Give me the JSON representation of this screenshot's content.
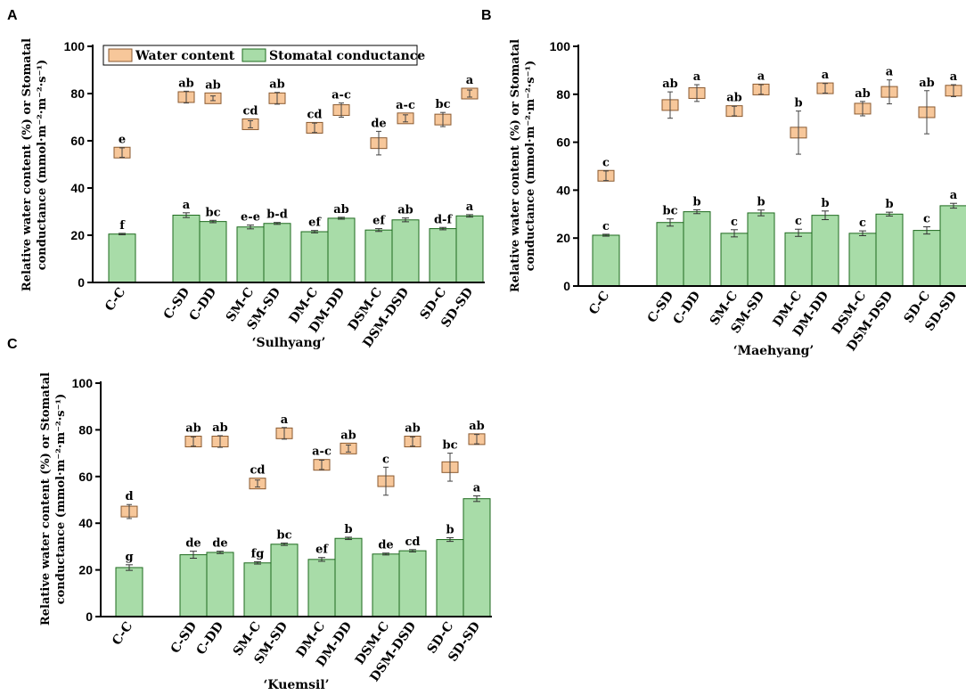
{
  "figure": {
    "y_axis_label_line1": "Relative water content (%) or Stomatal",
    "y_axis_label_line2": "conductance (mmol·m⁻²·m⁻²·s⁻¹)",
    "legend": {
      "water": "Water content",
      "stomatal": "Stomatal conductance"
    },
    "colors": {
      "bar": "#a8dca8",
      "bar_edge": "#1e6a1e",
      "box": "#f7c79a",
      "box_edge": "#8a5a30",
      "axis": "#000000"
    }
  },
  "chart_data": [
    {
      "panel": "A",
      "type": "bar",
      "title": "‘Sulhyang’",
      "ylim": [
        0,
        100
      ],
      "yticks": [
        0,
        20,
        40,
        60,
        80,
        100
      ],
      "legend_placement": "top",
      "categories": [
        "C-C",
        "C-SD",
        "C-DD",
        "SM-C",
        "SM-SD",
        "DM-C",
        "DM-DD",
        "DSM-C",
        "DSM-DSD",
        "SD-C",
        "SD-SD"
      ],
      "groups": [
        [
          0
        ],
        [
          1,
          2
        ],
        [
          3,
          4
        ],
        [
          5,
          6
        ],
        [
          7,
          8
        ],
        [
          9,
          10
        ]
      ],
      "series": [
        {
          "name": "Stomatal conductance",
          "kind": "bar",
          "values": [
            20.5,
            28.5,
            25.8,
            23.5,
            25.0,
            21.5,
            27.2,
            22.2,
            26.5,
            22.8,
            28.2
          ],
          "errors": [
            0.3,
            1.0,
            0.5,
            0.8,
            0.4,
            0.5,
            0.4,
            0.6,
            0.8,
            0.5,
            0.5
          ],
          "labels": [
            "f",
            "a",
            "bc",
            "e-e",
            "b-d",
            "ef",
            "ab",
            "ef",
            "ab",
            "d-f",
            "a"
          ]
        },
        {
          "name": "Water content",
          "kind": "box",
          "values": [
            55,
            78.5,
            78,
            67,
            78,
            65.5,
            73,
            59,
            69.5,
            69,
            80
          ],
          "errors": [
            2,
            2.5,
            1,
            1.5,
            2.5,
            2,
            3,
            5,
            1.5,
            3,
            1.5
          ],
          "labels": [
            "e",
            "ab",
            "ab",
            "cd",
            "ab",
            "cd",
            "a-c",
            "de",
            "a-c",
            "bc",
            "a"
          ]
        }
      ]
    },
    {
      "panel": "B",
      "type": "bar",
      "title": "‘Maehyang’",
      "ylim": [
        0,
        100
      ],
      "yticks": [
        0,
        20,
        40,
        60,
        80,
        100
      ],
      "categories": [
        "C-C",
        "C-SD",
        "C-DD",
        "SM-C",
        "SM-SD",
        "DM-C",
        "DM-DD",
        "DSM-C",
        "DSM-DSD",
        "SD-C",
        "SD-SD"
      ],
      "groups": [
        [
          0
        ],
        [
          1,
          2
        ],
        [
          3,
          4
        ],
        [
          5,
          6
        ],
        [
          7,
          8
        ],
        [
          9,
          10
        ]
      ],
      "series": [
        {
          "name": "Stomatal conductance",
          "kind": "bar",
          "values": [
            21.2,
            26.5,
            31.0,
            22.0,
            30.5,
            22.2,
            29.5,
            22.0,
            30.0,
            23.2,
            33.5
          ],
          "errors": [
            0.4,
            1.5,
            0.8,
            1.5,
            1.2,
            1.5,
            1.8,
            1.0,
            0.8,
            1.5,
            1.0
          ],
          "labels": [
            "c",
            "bc",
            "b",
            "c",
            "b",
            "c",
            "b",
            "c",
            "b",
            "c",
            "a"
          ]
        },
        {
          "name": "Water content",
          "kind": "box",
          "values": [
            46,
            75.5,
            80.5,
            73,
            82,
            64,
            82.5,
            74,
            81,
            72.5,
            81.5
          ],
          "errors": [
            2,
            5.5,
            3.5,
            2,
            2,
            9,
            2,
            3,
            5,
            9,
            2.5
          ],
          "labels": [
            "c",
            "ab",
            "a",
            "ab",
            "a",
            "b",
            "a",
            "ab",
            "a",
            "ab",
            "a"
          ]
        }
      ]
    },
    {
      "panel": "C",
      "type": "bar",
      "title": "‘Kuemsil’",
      "ylim": [
        0,
        100
      ],
      "yticks": [
        0,
        20,
        40,
        60,
        80,
        100
      ],
      "categories": [
        "C-C",
        "C-SD",
        "C-DD",
        "SM-C",
        "SM-SD",
        "DM-C",
        "DM-DD",
        "DSM-C",
        "DSM-DSD",
        "SD-C",
        "SD-SD"
      ],
      "groups": [
        [
          0
        ],
        [
          1,
          2
        ],
        [
          3,
          4
        ],
        [
          5,
          6
        ],
        [
          7,
          8
        ],
        [
          9,
          10
        ]
      ],
      "series": [
        {
          "name": "Stomatal conductance",
          "kind": "bar",
          "values": [
            21.0,
            26.5,
            27.5,
            23.0,
            31.0,
            24.5,
            33.5,
            26.8,
            28.2,
            33.0,
            50.5
          ],
          "errors": [
            1.2,
            1.5,
            0.5,
            0.5,
            0.5,
            0.8,
            0.5,
            0.4,
            0.5,
            0.8,
            1.2
          ],
          "labels": [
            "g",
            "de",
            "de",
            "fg",
            "bc",
            "ef",
            "b",
            "de",
            "cd",
            "b",
            "a"
          ]
        },
        {
          "name": "Water content",
          "kind": "box",
          "values": [
            45,
            75,
            75,
            57,
            78.5,
            65,
            72,
            58,
            75,
            64,
            76
          ],
          "errors": [
            3,
            2,
            2.5,
            1.5,
            2.5,
            2,
            1.5,
            6,
            2,
            6,
            2
          ],
          "labels": [
            "d",
            "ab",
            "ab",
            "cd",
            "a",
            "a-c",
            "ab",
            "c",
            "ab",
            "bc",
            "ab"
          ]
        }
      ]
    }
  ]
}
